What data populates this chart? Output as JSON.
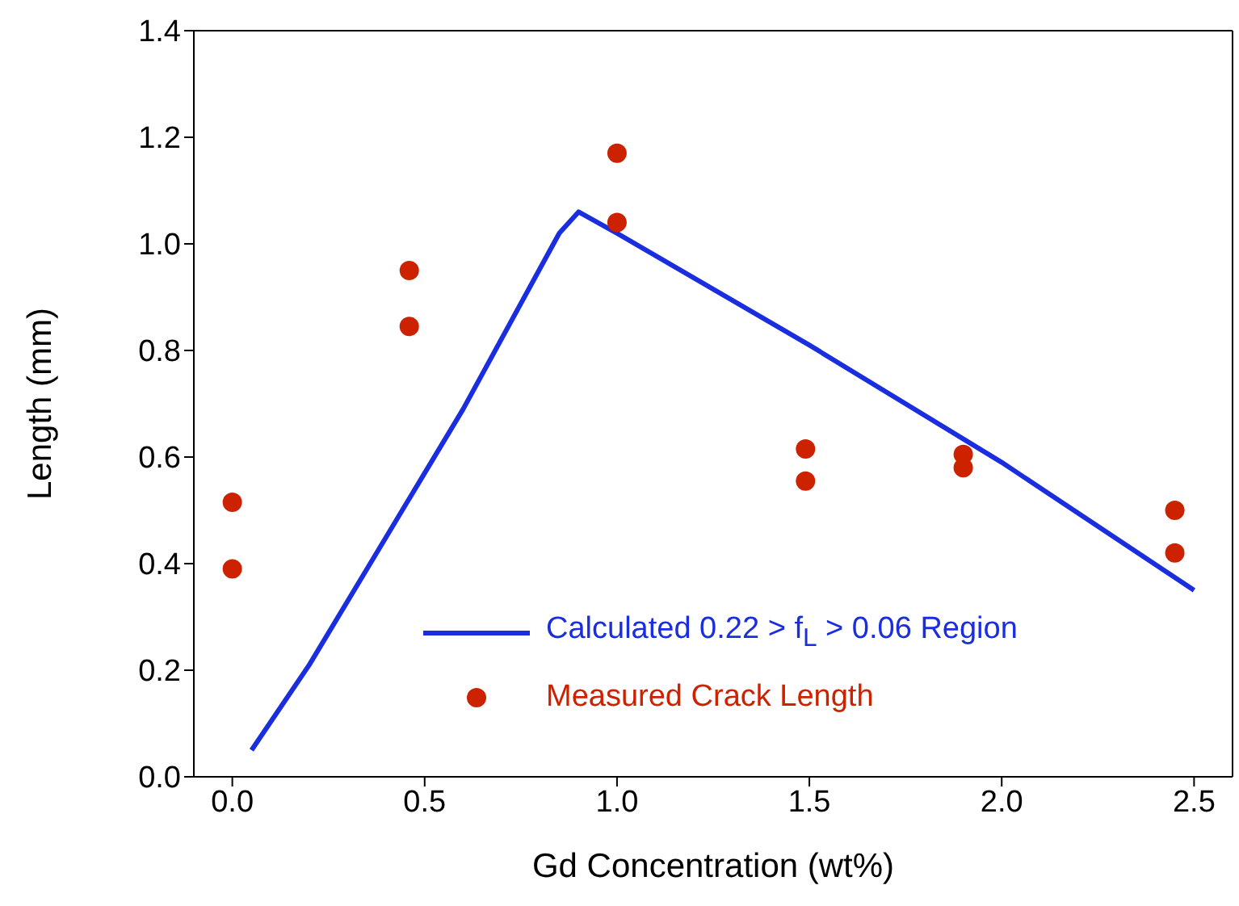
{
  "chart_data": {
    "type": "scatter",
    "xlabel": "Gd Concentration (wt%)",
    "ylabel": "Length (mm)",
    "xlim": [
      -0.1,
      2.6
    ],
    "xticks": [
      {
        "value": 0,
        "label": "0.0"
      },
      {
        "value": 0.5,
        "label": "0.5"
      },
      {
        "value": 1,
        "label": "1.0"
      },
      {
        "value": 1.5,
        "label": "1.5"
      },
      {
        "value": 2,
        "label": "2.0"
      },
      {
        "value": 2.5,
        "label": "2.5"
      }
    ],
    "ylim": [
      0,
      1.4
    ],
    "yticks": [
      {
        "value": 0,
        "label": "0.0"
      },
      {
        "value": 0.2,
        "label": "0.2"
      },
      {
        "value": 0.4,
        "label": "0.4"
      },
      {
        "value": 0.6,
        "label": "0.6"
      },
      {
        "value": 0.8,
        "label": "0.8"
      },
      {
        "value": 1,
        "label": "1.0"
      },
      {
        "value": 1.2,
        "label": "1.2"
      },
      {
        "value": 1.4,
        "label": "1.4"
      }
    ],
    "legend": "bottom",
    "series": [
      {
        "name": "Calculated 0.22 > f$_{L}$ > 0.06 Region",
        "type": "line",
        "color": "#1a2ee0",
        "marker": "none",
        "line_style": "solid",
        "x": [
          0.05,
          0.2,
          0.4,
          0.6,
          0.85,
          0.9,
          1.0,
          1.5,
          2.0,
          2.5
        ],
        "values": [
          0.05,
          0.21,
          0.45,
          0.69,
          1.02,
          1.06,
          1.02,
          0.81,
          0.59,
          0.35
        ]
      },
      {
        "name": "Measured Crack Length",
        "color": "#cc2200",
        "marker": "circle",
        "x": [
          0,
          0,
          0.46,
          0.46,
          1.0,
          1.0,
          1.49,
          1.49,
          1.9,
          1.9,
          2.45,
          2.45
        ],
        "values": [
          0.515,
          0.39,
          0.95,
          0.845,
          1.17,
          1.04,
          0.615,
          0.555,
          0.605,
          0.58,
          0.5,
          0.42
        ]
      }
    ]
  }
}
